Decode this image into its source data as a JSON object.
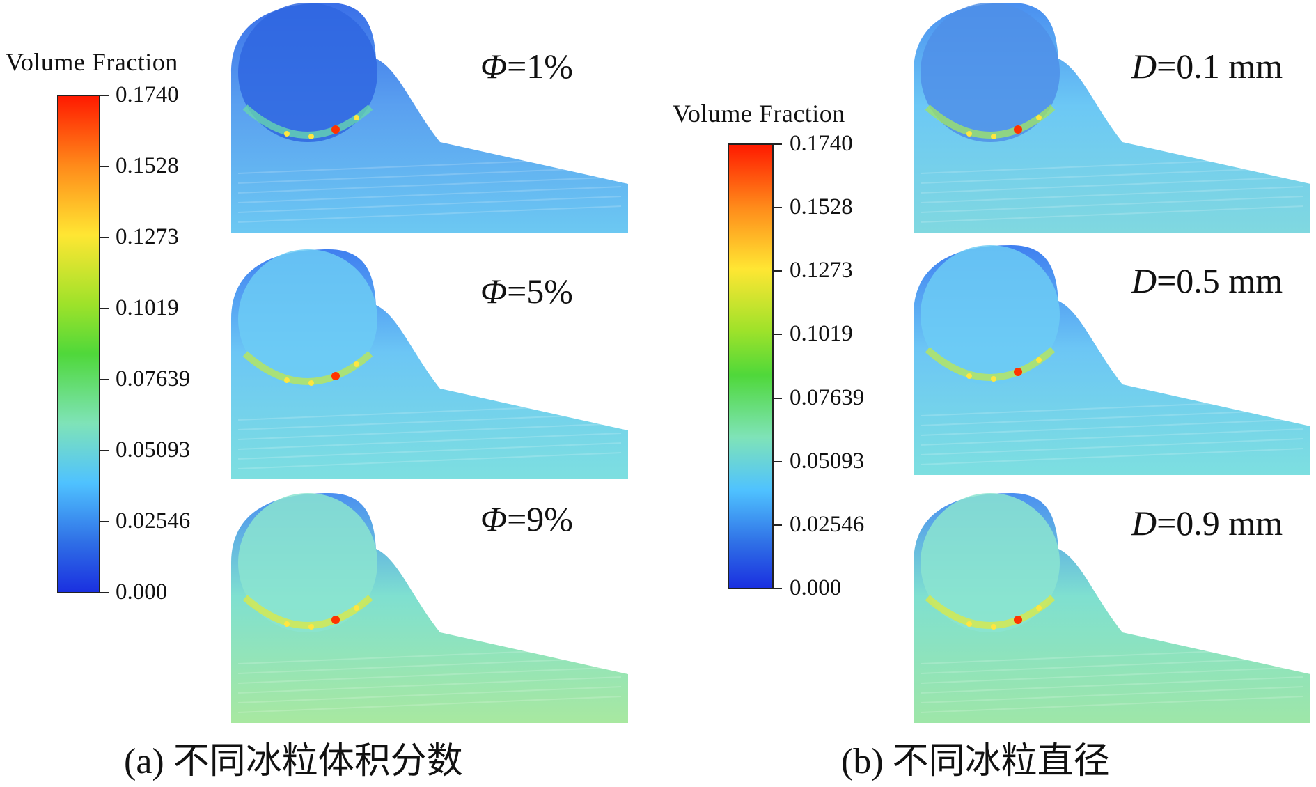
{
  "colorbar": {
    "title": "Volume Fraction",
    "ticks": [
      "0.1740",
      "0.1528",
      "0.1273",
      "0.1019",
      "0.07639",
      "0.05093",
      "0.02546",
      "0.000"
    ],
    "range": [
      0.0,
      0.174
    ],
    "gradient": [
      "#ff1a00",
      "#ff8a1a",
      "#ffe633",
      "#55e022",
      "#2fd040",
      "#6fe1c0",
      "#4fc2ff",
      "#2f6fe6",
      "#1a30e0"
    ]
  },
  "group_a": {
    "caption": "(a) 不同冰粒体积分数",
    "panels": [
      {
        "symbol": "Φ",
        "value": "=1%"
      },
      {
        "symbol": "Φ",
        "value": "=5%"
      },
      {
        "symbol": "Φ",
        "value": "=9%"
      }
    ]
  },
  "group_b": {
    "caption": "(b) 不同冰粒直径",
    "panels": [
      {
        "symbol": "D",
        "value": "=0.1 mm"
      },
      {
        "symbol": "D",
        "value": "=0.5 mm"
      },
      {
        "symbol": "D",
        "value": "=0.9 mm"
      }
    ]
  },
  "colors": {
    "low": "#2a5fe0",
    "mid_low": "#4fb6f5",
    "mid": "#7fe8c8",
    "high": "#ff2200"
  }
}
